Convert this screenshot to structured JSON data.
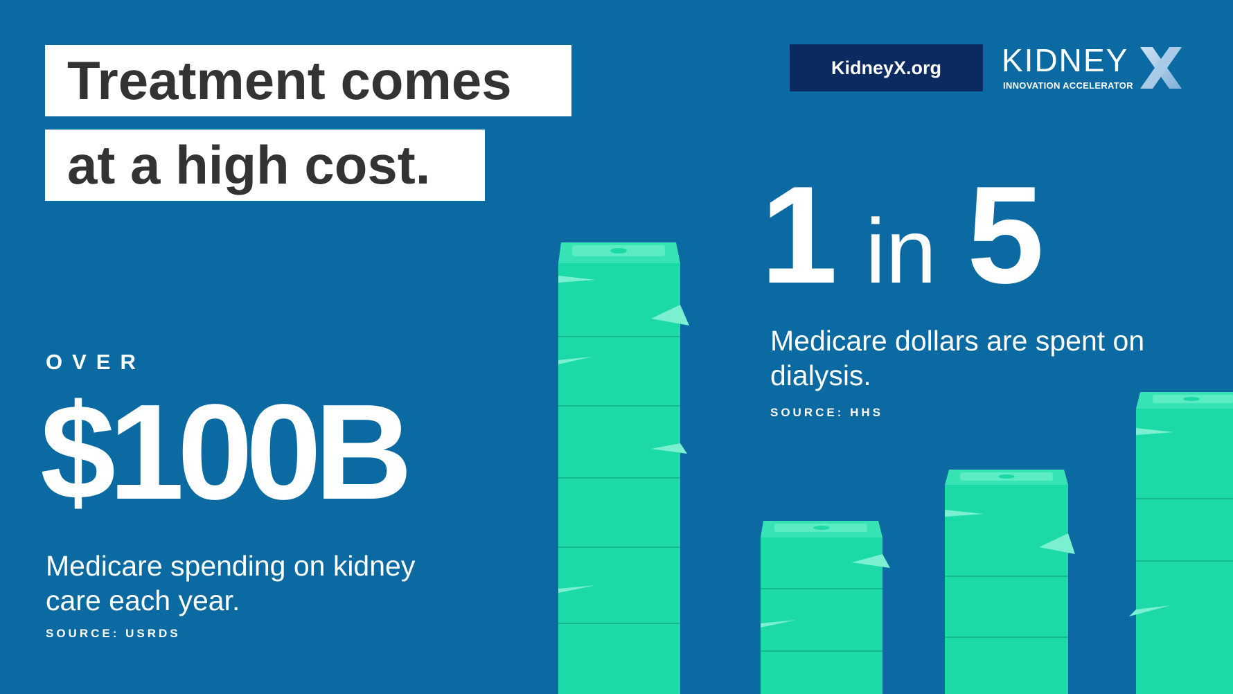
{
  "headline": {
    "line1": "Treatment comes",
    "line2": "at a high cost."
  },
  "header": {
    "site_link": "KidneyX.org",
    "logo_word": "KIDNEY",
    "logo_tagline": "INNOVATION ACCELERATOR"
  },
  "stat_left": {
    "prefix": "OVER",
    "amount": "$100B",
    "description": "Medicare spending on kidney care each year.",
    "source": "SOURCE: USRDS"
  },
  "stat_right": {
    "numerator": "1",
    "connector": "in",
    "denominator": "5",
    "description": "Medicare dollars are spent on dialysis.",
    "source": "SOURCE: HHS"
  },
  "colors": {
    "background": "#0a6aa1",
    "money_green": "#1cd9a8",
    "badge_navy": "#0b2a60"
  },
  "icons": [
    "money-stack-icon",
    "kidneyx-x-logo-icon"
  ]
}
